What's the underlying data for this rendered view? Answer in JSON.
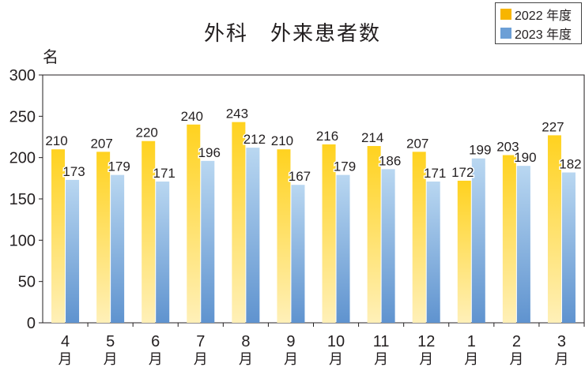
{
  "title": "外科　外来患者数",
  "colors": {
    "s2022": "#f7b500",
    "s2023": "#6c9fd6"
  },
  "chart_data": {
    "type": "bar",
    "title": "外科　外来患者数",
    "ylabel": "名",
    "xlabel": "",
    "ylim": [
      0,
      300
    ],
    "yticks": [
      "0",
      "50",
      "100",
      "150",
      "200",
      "250",
      "300"
    ],
    "grid": false,
    "legend_position": "top-right",
    "categories": [
      {
        "num": "4",
        "unit": "月"
      },
      {
        "num": "5",
        "unit": "月"
      },
      {
        "num": "6",
        "unit": "月"
      },
      {
        "num": "7",
        "unit": "月"
      },
      {
        "num": "8",
        "unit": "月"
      },
      {
        "num": "9",
        "unit": "月"
      },
      {
        "num": "10",
        "unit": "月"
      },
      {
        "num": "11",
        "unit": "月"
      },
      {
        "num": "12",
        "unit": "月"
      },
      {
        "num": "1",
        "unit": "月"
      },
      {
        "num": "2",
        "unit": "月"
      },
      {
        "num": "3",
        "unit": "月"
      }
    ],
    "series": [
      {
        "name": "2022 年度",
        "values": [
          210,
          207,
          220,
          240,
          243,
          210,
          216,
          214,
          207,
          172,
          203,
          227
        ]
      },
      {
        "name": "2023 年度",
        "values": [
          173,
          179,
          171,
          196,
          212,
          167,
          179,
          186,
          171,
          199,
          190,
          182
        ]
      }
    ]
  }
}
